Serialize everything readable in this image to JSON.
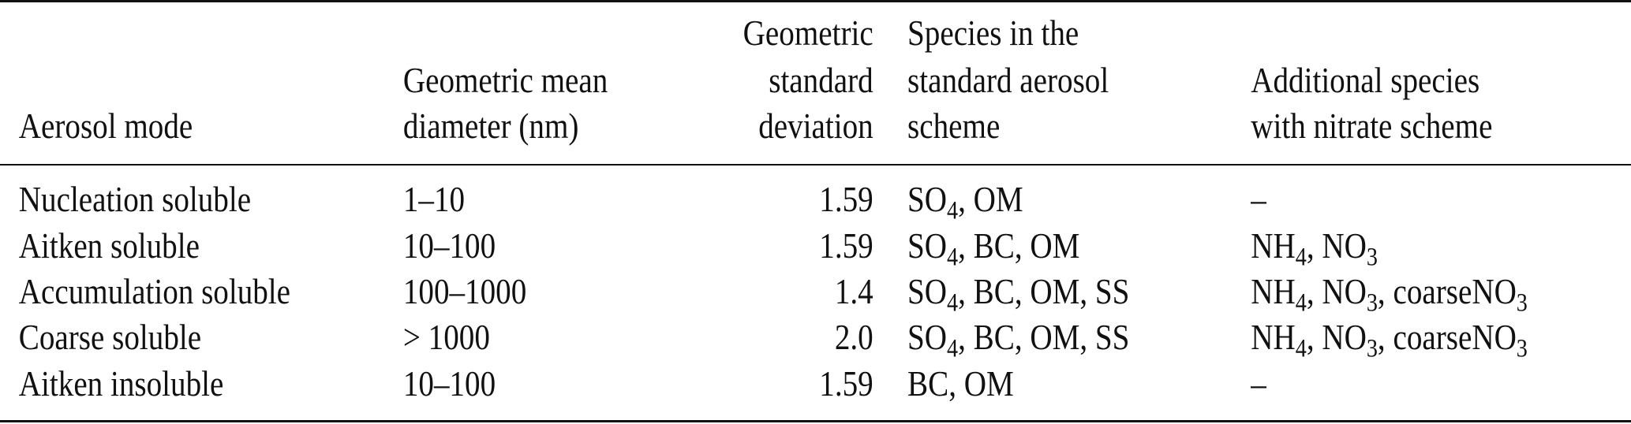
{
  "table": {
    "headers": [
      {
        "lines": [
          "Aerosol mode"
        ]
      },
      {
        "lines": [
          "Geometric mean",
          "diameter (nm)"
        ]
      },
      {
        "lines": [
          "Geometric",
          "standard",
          "deviation"
        ]
      },
      {
        "lines": [
          "Species in the",
          "standard aerosol",
          "scheme"
        ]
      },
      {
        "lines": [
          "Additional species",
          "with nitrate scheme"
        ]
      }
    ],
    "rows": [
      {
        "mode": "Nucleation soluble",
        "diameter": "1–10",
        "gsd": "1.59",
        "species": "SO4, OM",
        "nitrate": "–"
      },
      {
        "mode": "Aitken soluble",
        "diameter": "10–100",
        "gsd": "1.59",
        "species": "SO4, BC, OM",
        "nitrate": "NH4, NO3"
      },
      {
        "mode": "Accumulation soluble",
        "diameter": "100–1000",
        "gsd": "1.4",
        "species": "SO4, BC, OM, SS",
        "nitrate": "NH4, NO3, coarseNO3"
      },
      {
        "mode": "Coarse soluble",
        "diameter": "> 1000",
        "gsd": "2.0",
        "species": "SO4, BC, OM, SS",
        "nitrate": "NH4, NO3, coarseNO3"
      },
      {
        "mode": "Aitken insoluble",
        "diameter": "10–100",
        "gsd": "1.59",
        "species": "BC, OM",
        "nitrate": "–"
      }
    ]
  }
}
